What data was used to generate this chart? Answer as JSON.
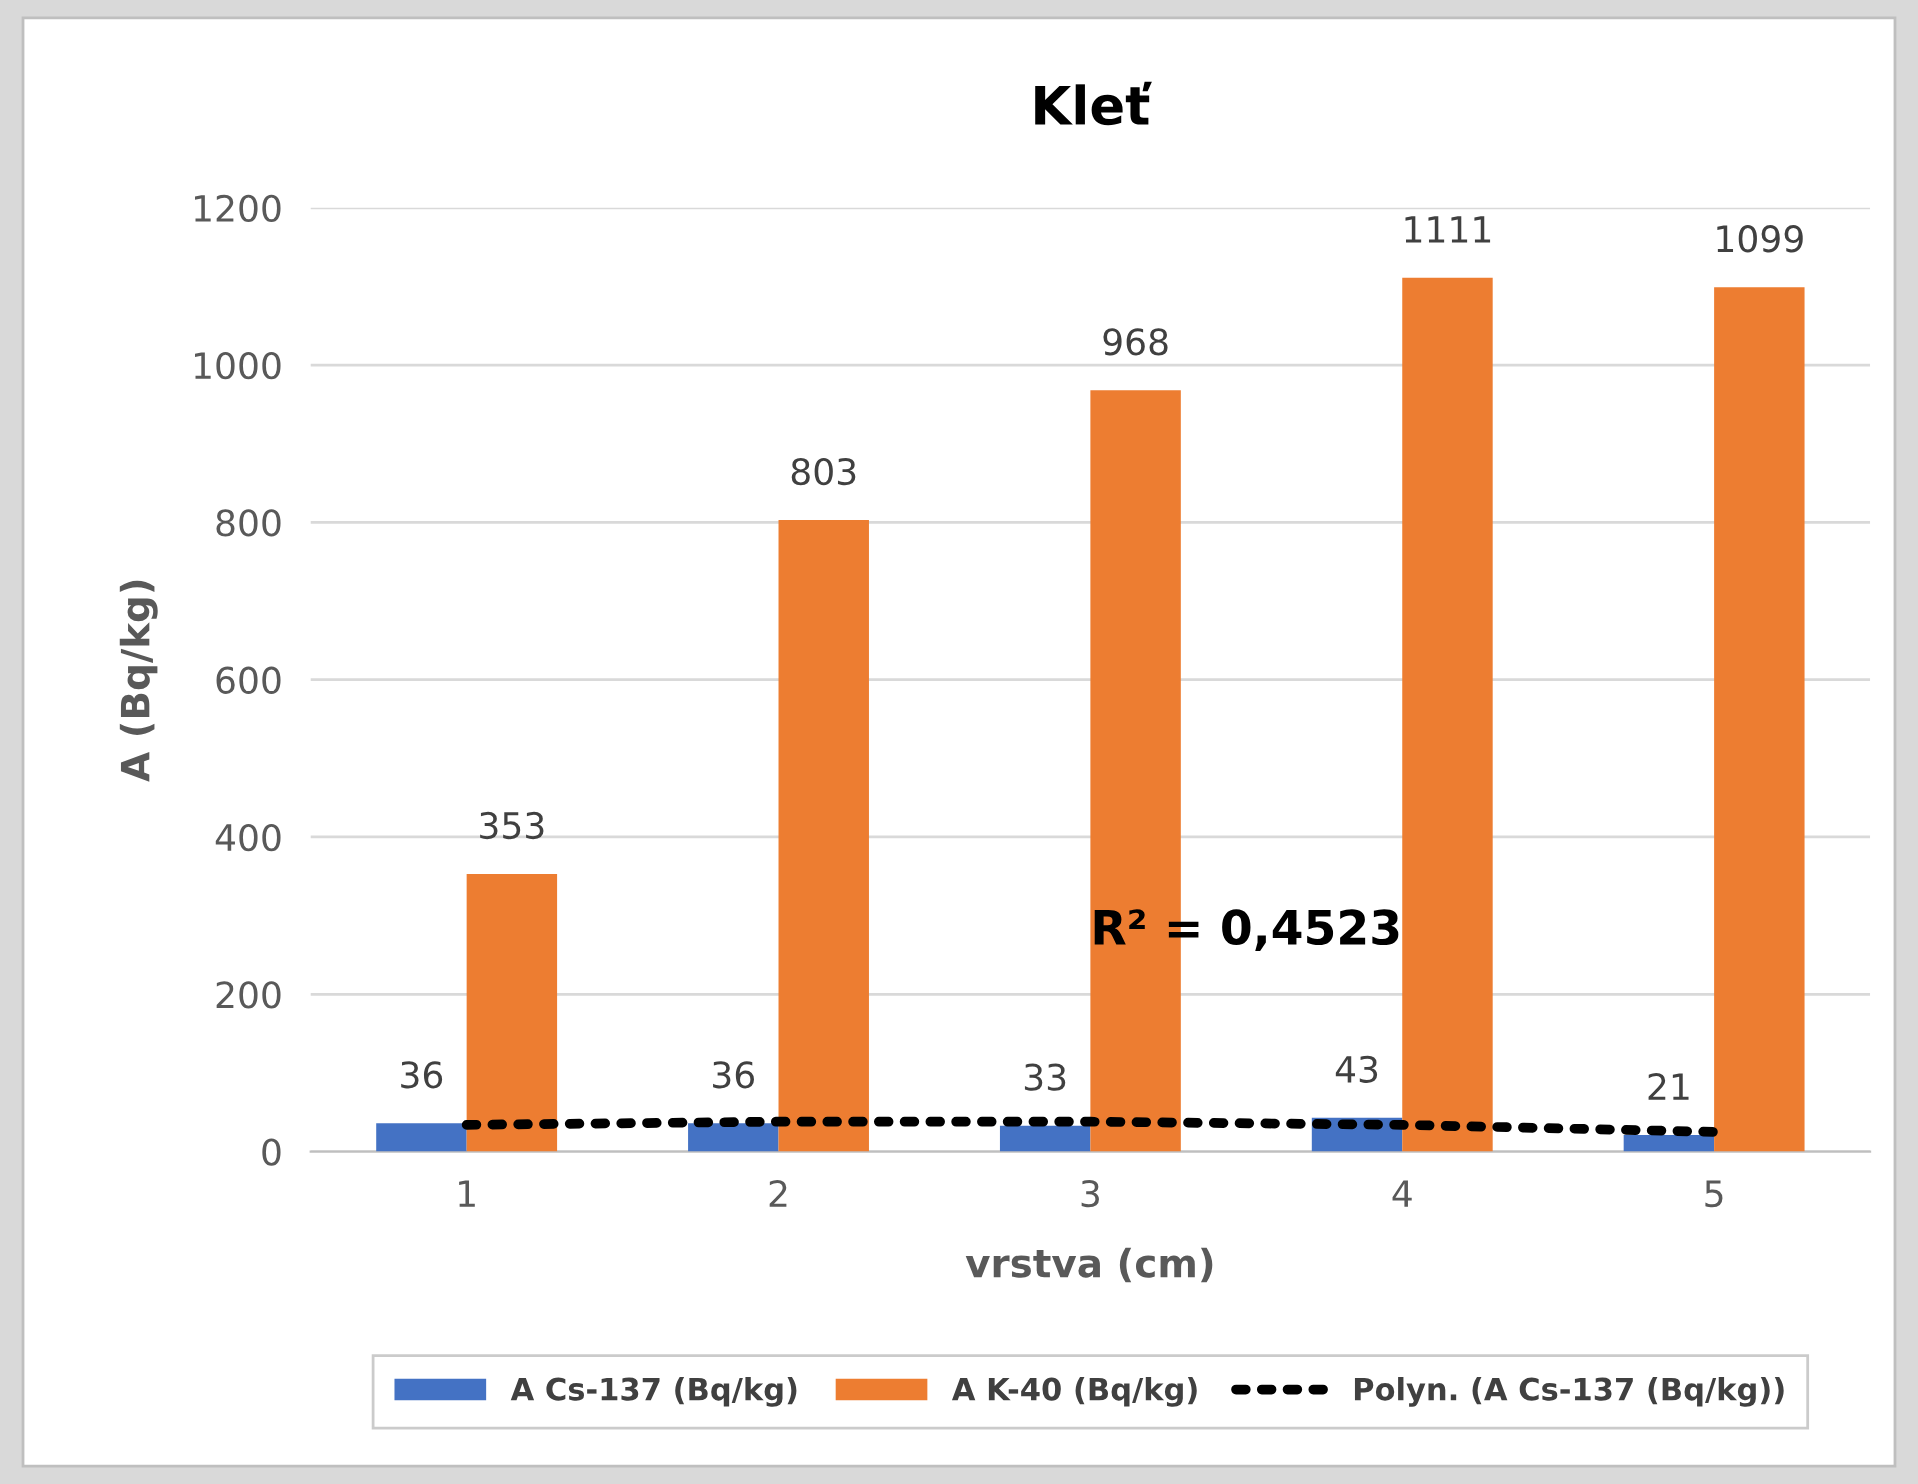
{
  "chart_data": {
    "type": "bar",
    "title": "Kleť",
    "xlabel": "vrstva (cm)",
    "ylabel": "A (Bq/kg)",
    "categories": [
      "1",
      "2",
      "3",
      "4",
      "5"
    ],
    "series": [
      {
        "name": "A Cs-137 (Bq/kg)",
        "color": "#4472c4",
        "values": [
          36,
          36,
          33,
          43,
          21
        ],
        "value_labels": [
          "36",
          "36",
          "33",
          "43",
          "21"
        ]
      },
      {
        "name": "A K-40 (Bq/kg)",
        "color": "#ed7d31",
        "values": [
          353,
          803,
          968,
          1111,
          1099
        ],
        "value_labels": [
          "353",
          "803",
          "968",
          "1111",
          "1099"
        ]
      },
      {
        "name": "Polyn. (A Cs-137 (Bq/kg))",
        "type": "line",
        "line_style": "dotted",
        "color": "#000000",
        "values": [
          34,
          38,
          38,
          34,
          25
        ]
      }
    ],
    "annotations": [
      {
        "text": "R² = 0,4523",
        "x": "3",
        "y": 280
      }
    ],
    "ylim": [
      0,
      1200
    ],
    "yticks": [
      0,
      200,
      400,
      600,
      800,
      1000,
      1200
    ],
    "grid": "y",
    "legend": "bottom"
  }
}
